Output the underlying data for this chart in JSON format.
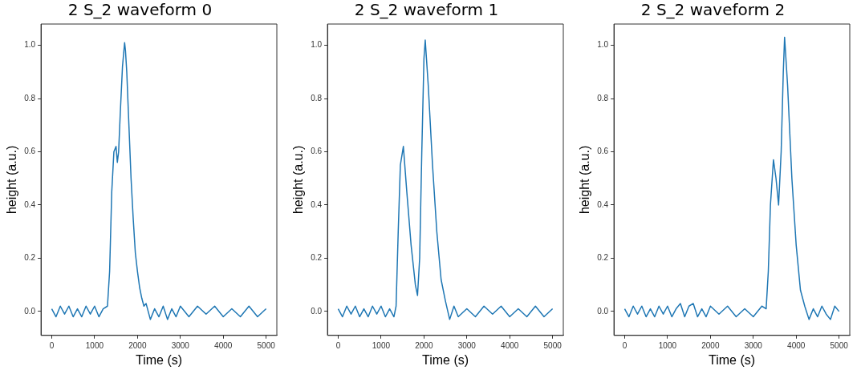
{
  "chart_data": [
    {
      "type": "line",
      "title": "2 S_2 waveform 0",
      "xlabel": "Time (s)",
      "ylabel": "height (a.u.)",
      "xlim": [
        -250,
        5250
      ],
      "ylim": [
        -0.09,
        1.08
      ],
      "xticks": [
        0,
        1000,
        2000,
        3000,
        4000,
        5000
      ],
      "yticks": [
        {
          "value": 0,
          "label": "0.0"
        },
        {
          "value": 0.2,
          "label": "0.2"
        },
        {
          "value": 0.4,
          "label": "0.4"
        },
        {
          "value": 0.6,
          "label": "0.6"
        },
        {
          "value": 0.8,
          "label": "0.8"
        },
        {
          "value": 1,
          "label": "1.0"
        }
      ],
      "grid": false,
      "legend": false,
      "marker": "none",
      "series": [
        {
          "color": "#1f77b4",
          "x": [
            0,
            100,
            200,
            300,
            400,
            500,
            600,
            700,
            800,
            900,
            1000,
            1100,
            1200,
            1300,
            1350,
            1400,
            1450,
            1500,
            1530,
            1560,
            1600,
            1650,
            1700,
            1720,
            1750,
            1800,
            1850,
            1900,
            1950,
            2000,
            2050,
            2100,
            2150,
            2200,
            2300,
            2400,
            2500,
            2600,
            2700,
            2800,
            2900,
            3000,
            3200,
            3400,
            3600,
            3800,
            4000,
            4200,
            4400,
            4600,
            4800,
            5000
          ],
          "values": [
            0.01,
            -0.02,
            0.02,
            -0.01,
            0.02,
            -0.02,
            0.01,
            -0.02,
            0.02,
            -0.01,
            0.02,
            -0.02,
            0.01,
            0.02,
            0.15,
            0.45,
            0.6,
            0.62,
            0.56,
            0.6,
            0.75,
            0.92,
            1.01,
            0.98,
            0.9,
            0.7,
            0.5,
            0.35,
            0.22,
            0.15,
            0.09,
            0.05,
            0.02,
            0.03,
            -0.03,
            0.01,
            -0.02,
            0.02,
            -0.03,
            0.01,
            -0.02,
            0.02,
            -0.02,
            0.02,
            -0.01,
            0.02,
            -0.02,
            0.01,
            -0.02,
            0.02,
            -0.02,
            0.01
          ]
        }
      ]
    },
    {
      "type": "line",
      "title": "2 S_2 waveform 1",
      "xlabel": "Time (s)",
      "ylabel": "height (a.u.)",
      "xlim": [
        -250,
        5250
      ],
      "ylim": [
        -0.09,
        1.08
      ],
      "xticks": [
        0,
        1000,
        2000,
        3000,
        4000,
        5000
      ],
      "yticks": [
        {
          "value": 0,
          "label": "0.0"
        },
        {
          "value": 0.2,
          "label": "0.2"
        },
        {
          "value": 0.4,
          "label": "0.4"
        },
        {
          "value": 0.6,
          "label": "0.6"
        },
        {
          "value": 0.8,
          "label": "0.8"
        },
        {
          "value": 1,
          "label": "1.0"
        }
      ],
      "grid": false,
      "legend": false,
      "marker": "none",
      "series": [
        {
          "color": "#1f77b4",
          "x": [
            0,
            100,
            200,
            300,
            400,
            500,
            600,
            700,
            800,
            900,
            1000,
            1100,
            1200,
            1300,
            1350,
            1400,
            1450,
            1520,
            1600,
            1700,
            1800,
            1850,
            1900,
            1950,
            2000,
            2030,
            2100,
            2200,
            2300,
            2400,
            2500,
            2600,
            2700,
            2800,
            3000,
            3200,
            3400,
            3600,
            3800,
            4000,
            4200,
            4400,
            4600,
            4800,
            5000
          ],
          "values": [
            0.01,
            -0.02,
            0.02,
            -0.01,
            0.02,
            -0.02,
            0.01,
            -0.02,
            0.02,
            -0.01,
            0.02,
            -0.02,
            0.01,
            -0.02,
            0.02,
            0.3,
            0.55,
            0.62,
            0.45,
            0.25,
            0.1,
            0.06,
            0.2,
            0.6,
            0.95,
            1.02,
            0.85,
            0.55,
            0.3,
            0.12,
            0.04,
            -0.03,
            0.02,
            -0.02,
            0.01,
            -0.02,
            0.02,
            -0.01,
            0.02,
            -0.02,
            0.01,
            -0.02,
            0.02,
            -0.02,
            0.01
          ]
        }
      ]
    },
    {
      "type": "line",
      "title": "2 S_2 waveform 2",
      "xlabel": "Time (s)",
      "ylabel": "height (a.u.)",
      "xlim": [
        -250,
        5250
      ],
      "ylim": [
        -0.09,
        1.08
      ],
      "xticks": [
        0,
        1000,
        2000,
        3000,
        4000,
        5000
      ],
      "yticks": [
        {
          "value": 0,
          "label": "0.0"
        },
        {
          "value": 0.2,
          "label": "0.2"
        },
        {
          "value": 0.4,
          "label": "0.4"
        },
        {
          "value": 0.6,
          "label": "0.6"
        },
        {
          "value": 0.8,
          "label": "0.8"
        },
        {
          "value": 1,
          "label": "1.0"
        }
      ],
      "grid": false,
      "legend": false,
      "marker": "none",
      "series": [
        {
          "color": "#1f77b4",
          "x": [
            0,
            100,
            200,
            300,
            400,
            500,
            600,
            700,
            800,
            900,
            1000,
            1100,
            1200,
            1300,
            1400,
            1500,
            1600,
            1700,
            1800,
            1900,
            2000,
            2200,
            2400,
            2600,
            2800,
            3000,
            3200,
            3300,
            3350,
            3400,
            3470,
            3530,
            3590,
            3650,
            3700,
            3730,
            3800,
            3900,
            4000,
            4100,
            4200,
            4300,
            4400,
            4500,
            4600,
            4700,
            4800,
            4900,
            5000
          ],
          "values": [
            0.01,
            -0.02,
            0.02,
            -0.01,
            0.02,
            -0.02,
            0.01,
            -0.02,
            0.02,
            -0.01,
            0.02,
            -0.02,
            0.01,
            0.03,
            -0.02,
            0.02,
            0.03,
            -0.02,
            0.01,
            -0.02,
            0.02,
            -0.01,
            0.02,
            -0.02,
            0.01,
            -0.02,
            0.02,
            0.01,
            0.15,
            0.4,
            0.57,
            0.5,
            0.4,
            0.6,
            0.9,
            1.03,
            0.85,
            0.5,
            0.25,
            0.08,
            0.02,
            -0.03,
            0.01,
            -0.02,
            0.02,
            -0.01,
            -0.03,
            0.02,
            0.0
          ]
        }
      ]
    }
  ]
}
